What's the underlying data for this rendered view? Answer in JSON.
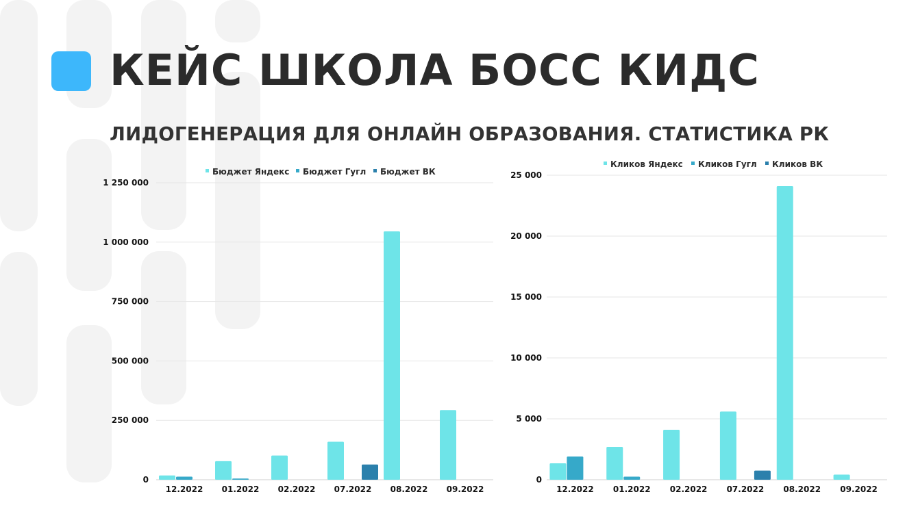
{
  "title": "КЕЙС ШКОЛА БОСС КИДС",
  "subtitle": "ЛИДОГЕНЕРАЦИЯ ДЛЯ ОНЛАЙН ОБРАЗОВАНИЯ. СТАТИСТИКА РК",
  "colors": {
    "accent": "#3db7fb",
    "title": "#2b2b2b",
    "decoration": "#f3f3f3",
    "series": [
      "#6ee4e8",
      "#36a9c9",
      "#2b80ac"
    ],
    "grid": "#e6e6e6"
  },
  "chart_data": [
    {
      "type": "bar",
      "categories": [
        "12.2022",
        "01.2022",
        "02.2022",
        "07.2022",
        "08.2022",
        "09.2022"
      ],
      "series": [
        {
          "name": "Бюджет Яндекс",
          "values": [
            18000,
            78000,
            102000,
            160000,
            1045000,
            293000
          ]
        },
        {
          "name": "Бюджет Гугл",
          "values": [
            13000,
            5000,
            0,
            0,
            0,
            0
          ]
        },
        {
          "name": "Бюджет ВК",
          "values": [
            0,
            0,
            0,
            64000,
            0,
            0
          ]
        }
      ],
      "ylim": [
        0,
        1250000
      ],
      "yticks": [
        0,
        250000,
        500000,
        750000,
        1000000,
        1250000
      ],
      "ytick_labels": [
        "0",
        "250 000",
        "500 000",
        "750 000",
        "1 000 000",
        "1 250 000"
      ],
      "grid": true,
      "legend": "top-center"
    },
    {
      "type": "bar",
      "categories": [
        "12.2022",
        "01.2022",
        "02.2022",
        "07.2022",
        "08.2022",
        "09.2022"
      ],
      "series": [
        {
          "name": "Кликов Яндекс",
          "values": [
            1350,
            2700,
            4100,
            5600,
            24100,
            420
          ]
        },
        {
          "name": "Кликов Гугл",
          "values": [
            1900,
            250,
            0,
            0,
            0,
            0
          ]
        },
        {
          "name": "Кликов ВК",
          "values": [
            0,
            0,
            0,
            750,
            0,
            0
          ]
        }
      ],
      "ylim": [
        0,
        25000
      ],
      "yticks": [
        0,
        5000,
        10000,
        15000,
        20000,
        25000
      ],
      "ytick_labels": [
        "0",
        "5 000",
        "10 000",
        "15 000",
        "20 000",
        "25 000"
      ],
      "grid": true,
      "legend": "top-center"
    }
  ]
}
